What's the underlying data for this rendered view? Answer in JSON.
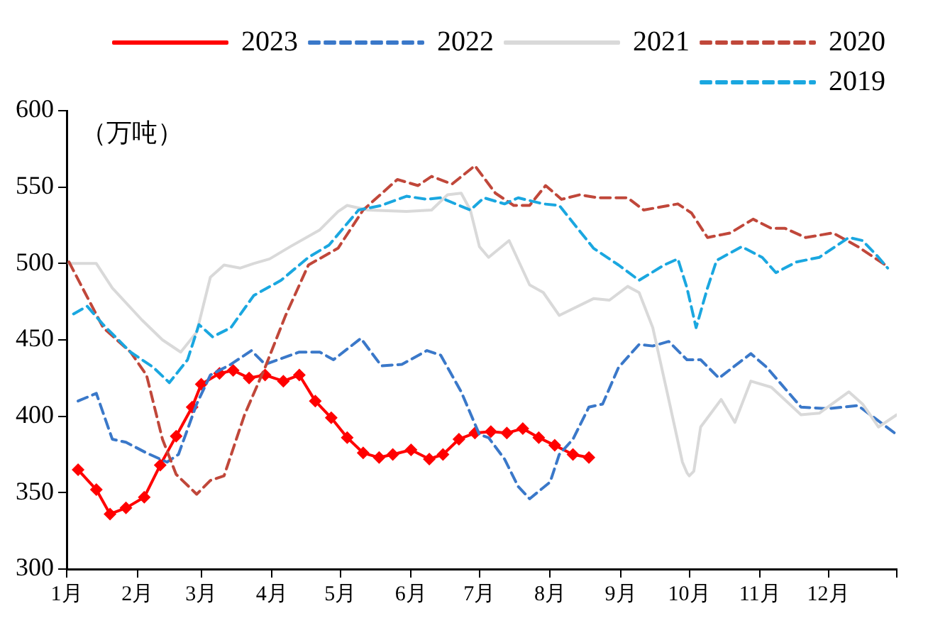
{
  "chart_data": {
    "type": "line",
    "ylabel": "（万吨）",
    "xlim": [
      "--01-01",
      "--12-31"
    ],
    "xticks": [
      {
        "value": "--01-01",
        "label": "1月"
      },
      {
        "value": "--02-01",
        "label": "2月"
      },
      {
        "value": "--03-01",
        "label": "3月"
      },
      {
        "value": "--04-01",
        "label": "4月"
      },
      {
        "value": "--05-01",
        "label": "5月"
      },
      {
        "value": "--06-01",
        "label": "6月"
      },
      {
        "value": "--07-01",
        "label": "7月"
      },
      {
        "value": "--08-01",
        "label": "8月"
      },
      {
        "value": "--09-01",
        "label": "9月"
      },
      {
        "value": "--10-01",
        "label": "10月"
      },
      {
        "value": "--11-01",
        "label": "11月"
      },
      {
        "value": "--12-01",
        "label": "12月"
      },
      {
        "value": "--12-31",
        "label": null
      }
    ],
    "ylim": [
      300,
      600
    ],
    "yticks": [
      300,
      350,
      400,
      450,
      500,
      550,
      600
    ],
    "grid": false,
    "legend": "top",
    "series": [
      {
        "name": "2023",
        "color": "#ff0000",
        "marker": "diamond",
        "line_style": "solid",
        "x": [
          "--01-06",
          "--01-14",
          "--01-20",
          "--01-27",
          "--02-04",
          "--02-11",
          "--02-18",
          "--02-25",
          "--03-01",
          "--03-09",
          "--03-15",
          "--03-22",
          "--03-29",
          "--04-06",
          "--04-13",
          "--04-20",
          "--04-27",
          "--05-04",
          "--05-11",
          "--05-18",
          "--05-24",
          "--06-01",
          "--06-09",
          "--06-15",
          "--06-22",
          "--06-29",
          "--07-06",
          "--07-13",
          "--07-20",
          "--07-27",
          "--08-03",
          "--08-11",
          "--08-18"
        ],
        "values": [
          365,
          352,
          336,
          340,
          347,
          368,
          387,
          406,
          421,
          428,
          430,
          425,
          427,
          423,
          427,
          410,
          399,
          386,
          376,
          373,
          375,
          378,
          372,
          375,
          385,
          389,
          390,
          389,
          392,
          386,
          381,
          375,
          373
        ]
      },
      {
        "name": "2022",
        "color": "#3a78c9",
        "marker": "none",
        "line_style": "dashed",
        "x": [
          "--01-06",
          "--01-14",
          "--01-21",
          "--01-27",
          "--02-05",
          "--02-14",
          "--02-19",
          "--02-27",
          "--03-05",
          "--03-14",
          "--03-23",
          "--03-29",
          "--04-13",
          "--04-22",
          "--04-28",
          "--05-10",
          "--05-19",
          "--05-28",
          "--06-08",
          "--06-14",
          "--06-23",
          "--07-01",
          "--07-05",
          "--07-12",
          "--07-18",
          "--07-23",
          "--08-01",
          "--08-05",
          "--08-11",
          "--08-18",
          "--08-24",
          "--08-31",
          "--09-09",
          "--09-15",
          "--09-22",
          "--09-30",
          "--10-06",
          "--10-14",
          "--10-28",
          "--11-04",
          "--11-19",
          "--12-01",
          "--12-14",
          "--12-31"
        ],
        "values": [
          410,
          415,
          385,
          383,
          376,
          370,
          375,
          408,
          427,
          434,
          443,
          434,
          442,
          442,
          437,
          451,
          433,
          434,
          443,
          440,
          416,
          388,
          386,
          372,
          354,
          346,
          357,
          375,
          385,
          406,
          408,
          432,
          447,
          446,
          449,
          437,
          437,
          425,
          441,
          432,
          406,
          405,
          407,
          388
        ]
      },
      {
        "name": "2021",
        "color": "#d9d9d9",
        "marker": "none",
        "line_style": "solid",
        "x": [
          "--01-02",
          "--01-14",
          "--01-21",
          "--02-03",
          "--02-12",
          "--02-20",
          "--02-27",
          "--03-05",
          "--03-11",
          "--03-18",
          "--03-24",
          "--03-31",
          "--04-09",
          "--04-22",
          "--04-30",
          "--05-04",
          "--05-13",
          "--05-30",
          "--06-10",
          "--06-17",
          "--06-23",
          "--06-27",
          "--07-01",
          "--07-05",
          "--07-14",
          "--07-23",
          "--07-29",
          "--08-05",
          "--08-20",
          "--08-27",
          "--09-04",
          "--09-09",
          "--09-15",
          "--09-22",
          "--09-28",
          "--09-30",
          "--10-01",
          "--10-03",
          "--10-06",
          "--10-15",
          "--10-21",
          "--10-28",
          "--11-06",
          "--11-19",
          "--11-27",
          "--12-10",
          "--12-16",
          "--12-23",
          "--12-31"
        ],
        "values": [
          500,
          500,
          484,
          463,
          450,
          442,
          455,
          491,
          499,
          497,
          500,
          503,
          511,
          522,
          534,
          538,
          535,
          534,
          535,
          545,
          546,
          535,
          511,
          504,
          515,
          486,
          481,
          466,
          477,
          476,
          485,
          481,
          458,
          411,
          370,
          363,
          361,
          364,
          393,
          411,
          396,
          423,
          419,
          401,
          402,
          416,
          408,
          393,
          401
        ]
      },
      {
        "name": "2020",
        "color": "#c0473a",
        "marker": "none",
        "line_style": "dashed",
        "x": [
          "--01-02",
          "--01-17",
          "--01-29",
          "--02-05",
          "--02-12",
          "--02-18",
          "--02-27",
          "--03-05",
          "--03-11",
          "--03-20",
          "--03-29",
          "--04-07",
          "--04-17",
          "--04-30",
          "--05-11",
          "--05-26",
          "--06-04",
          "--06-10",
          "--06-19",
          "--06-29",
          "--07-08",
          "--07-16",
          "--07-23",
          "--07-30",
          "--08-06",
          "--08-14",
          "--08-22",
          "--09-04",
          "--09-11",
          "--09-26",
          "--10-02",
          "--10-09",
          "--10-19",
          "--10-29",
          "--11-06",
          "--11-12",
          "--11-21",
          "--12-03",
          "--12-14",
          "--12-27"
        ],
        "values": [
          501,
          458,
          442,
          427,
          385,
          362,
          349,
          358,
          361,
          401,
          432,
          466,
          499,
          510,
          535,
          555,
          551,
          557,
          552,
          564,
          546,
          538,
          538,
          551,
          542,
          545,
          543,
          543,
          535,
          539,
          533,
          517,
          520,
          529,
          523,
          523,
          517,
          520,
          511,
          498
        ]
      },
      {
        "name": "2019",
        "color": "#1aa7e0",
        "marker": "none",
        "line_style": "dashed",
        "x": [
          "--01-04",
          "--01-10",
          "--01-17",
          "--01-29",
          "--02-08",
          "--02-15",
          "--02-23",
          "--02-28",
          "--03-06",
          "--03-14",
          "--03-24",
          "--04-05",
          "--04-17",
          "--04-26",
          "--05-09",
          "--05-19",
          "--05-30",
          "--06-08",
          "--06-14",
          "--06-27",
          "--07-03",
          "--07-12",
          "--07-18",
          "--07-29",
          "--08-05",
          "--08-20",
          "--08-31",
          "--09-09",
          "--09-20",
          "--09-26",
          "--09-30",
          "--10-04",
          "--10-09",
          "--10-13",
          "--10-24",
          "--11-02",
          "--11-08",
          "--11-17",
          "--11-27",
          "--12-10",
          "--12-16",
          "--12-23",
          "--12-27"
        ],
        "values": [
          467,
          472,
          460,
          442,
          432,
          422,
          437,
          460,
          452,
          458,
          479,
          489,
          504,
          512,
          535,
          538,
          544,
          542,
          543,
          535,
          543,
          539,
          543,
          539,
          538,
          510,
          499,
          489,
          499,
          503,
          484,
          458,
          484,
          502,
          511,
          504,
          494,
          501,
          504,
          517,
          515,
          504,
          497
        ]
      }
    ]
  }
}
